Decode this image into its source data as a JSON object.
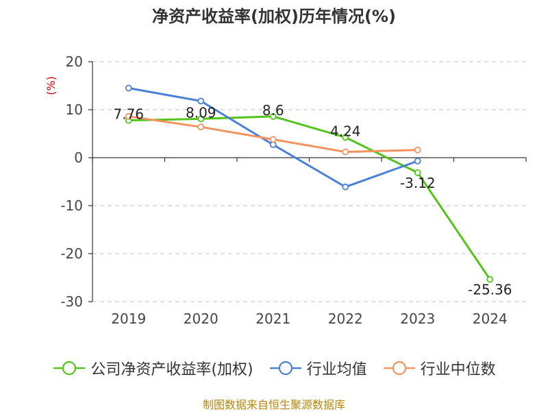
{
  "title": "净资产收益率(加权)历年情况(%)",
  "source": "制图数据来自恒生聚源数据库",
  "chart_data": {
    "type": "line",
    "title": "净资产收益率(加权)历年情况(%)",
    "ylabel": "(%)",
    "xlabel": "",
    "ylim": [
      -30,
      20
    ],
    "yticks": [
      20,
      10,
      0,
      -10,
      -20,
      -30
    ],
    "grid": true,
    "legend_position": "bottom",
    "categories": [
      "2019",
      "2020",
      "2021",
      "2022",
      "2023",
      "2024"
    ],
    "series": [
      {
        "name": "公司净资产收益率(加权)",
        "color": "#52c41a",
        "values": [
          7.76,
          8.09,
          8.6,
          4.24,
          -3.12,
          -25.36
        ],
        "labels": [
          "7.76",
          "8.09",
          "8.6",
          "4.24",
          "-3.12",
          "-25.36"
        ]
      },
      {
        "name": "行业均值",
        "color": "#4a7fd8",
        "values": [
          14.5,
          11.8,
          2.7,
          -6.1,
          -0.7,
          null
        ]
      },
      {
        "name": "行业中位数",
        "color": "#f5925e",
        "values": [
          8.6,
          6.4,
          3.8,
          1.2,
          1.6,
          null
        ]
      }
    ]
  }
}
